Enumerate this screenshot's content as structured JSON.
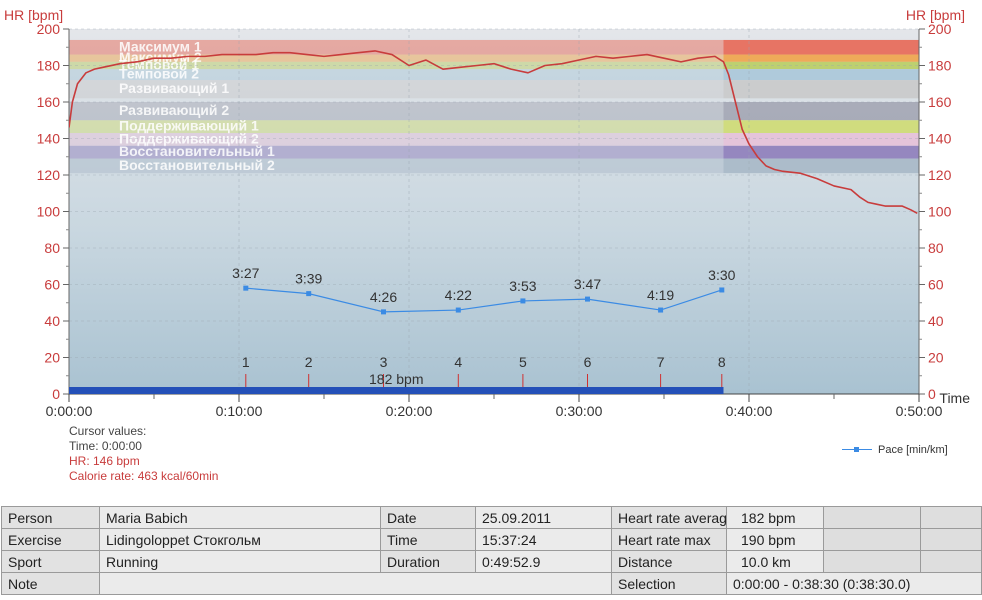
{
  "chart_data": {
    "type": "line",
    "ylabel_left": "HR [bpm]",
    "ylabel_right": "HR [bpm]",
    "xlabel": "Time",
    "ylim": [
      0,
      200
    ],
    "y_ticks": [
      0,
      20,
      40,
      60,
      80,
      100,
      120,
      140,
      160,
      180,
      200
    ],
    "xlim_min": [
      0,
      50
    ],
    "x_ticks": [
      "0:00:00",
      "0:10:00",
      "0:20:00",
      "0:30:00",
      "0:40:00",
      "0:50:00"
    ],
    "zones": [
      {
        "name": "Максимум 1",
        "low": 186,
        "high": 194,
        "color": "#e8604c"
      },
      {
        "name": "Максимум 2",
        "low": 182,
        "high": 186,
        "color": "#f0a040"
      },
      {
        "name": "Темповой 1",
        "low": 178,
        "high": 182,
        "color": "#b7cc5a"
      },
      {
        "name": "Темповой 2",
        "low": 172,
        "high": 178,
        "color": "#a7c6d8"
      },
      {
        "name": "Развивающий 1",
        "low": 162,
        "high": 172,
        "color": "#c8c8c8"
      },
      {
        "name": "Развивающий 2",
        "low": 150,
        "high": 160,
        "color": "#a0a2b0"
      },
      {
        "name": "Поддерживающий 1",
        "low": 143,
        "high": 150,
        "color": "#cfdc6c"
      },
      {
        "name": "Поддерживающий 2",
        "low": 136,
        "high": 143,
        "color": "#e7bfd8"
      },
      {
        "name": "Восстановительный 1",
        "low": 129,
        "high": 136,
        "color": "#8a78b8"
      },
      {
        "name": "Восстановительный 2",
        "low": 121,
        "high": 129,
        "color": "#a6b6c6"
      }
    ],
    "series": [
      {
        "name": "HR",
        "color": "#c83c3c",
        "x_min": [
          0,
          0.2,
          0.5,
          1,
          1.5,
          2,
          3,
          4,
          5,
          6,
          7,
          8,
          9,
          10,
          11,
          12,
          13,
          14,
          15,
          16,
          17,
          18,
          19,
          20,
          21,
          22,
          23,
          24,
          25,
          26,
          27,
          28,
          29,
          30,
          31,
          32,
          33,
          34,
          35,
          36,
          37,
          38,
          38.5,
          38.8,
          39.2,
          39.6,
          40,
          40.5,
          41,
          41.5,
          42,
          43,
          44,
          45,
          46,
          46.5,
          47,
          47.5,
          48,
          49,
          49.5,
          49.9
        ],
        "y": [
          146,
          160,
          170,
          176,
          178,
          179,
          181,
          182,
          184,
          184,
          185,
          185,
          186,
          186,
          186,
          187,
          187,
          186,
          185,
          186,
          187,
          188,
          186,
          180,
          183,
          178,
          179,
          180,
          181,
          178,
          176,
          180,
          181,
          183,
          185,
          184,
          185,
          186,
          184,
          182,
          184,
          185,
          182,
          175,
          160,
          145,
          137,
          130,
          125,
          123,
          122,
          121,
          118,
          114,
          112,
          108,
          105,
          104,
          103,
          103,
          101,
          99
        ]
      },
      {
        "name": "Pace [min/km]",
        "color": "#3b8be4",
        "x_min": [
          10.4,
          14.1,
          18.5,
          22.9,
          26.7,
          30.5,
          34.8,
          38.4
        ],
        "y": [
          58,
          55,
          45,
          46,
          51,
          52,
          46,
          57
        ],
        "labels": [
          "3:27",
          "3:39",
          "4:26",
          "4:22",
          "3:53",
          "3:47",
          "4:19",
          "3:30"
        ]
      }
    ],
    "laps": {
      "x_min": [
        10.4,
        14.1,
        18.5,
        22.9,
        26.7,
        30.5,
        34.8,
        38.4
      ],
      "labels": [
        "1",
        "2",
        "3",
        "4",
        "5",
        "6",
        "7",
        "8"
      ]
    },
    "selection_bar": {
      "start_min": 0,
      "end_min": 38.5,
      "label": "182 bpm",
      "color": "#2450b8"
    },
    "grid": true
  },
  "cursor": {
    "title": "Cursor values:",
    "time": "Time: 0:00:00",
    "hr": "HR: 146 bpm",
    "calorie": "Calorie rate: 463 kcal/60min"
  },
  "legend": {
    "label": "Pace [min/km]",
    "color": "#3b8be4"
  },
  "info_table": {
    "row1": {
      "l1": "Person",
      "v1": "Maria Babich",
      "l2": "Date",
      "v2": "25.09.2011",
      "l3": "Heart rate averag",
      "v3": "182 bpm"
    },
    "row2": {
      "l1": "Exercise",
      "v1": "Lidingoloppet Стокгольм",
      "l2": "Time",
      "v2": "15:37:24",
      "l3": "Heart rate max",
      "v3": "190 bpm"
    },
    "row3": {
      "l1": "Sport",
      "v1": "Running",
      "l2": "Duration",
      "v2": "0:49:52.9",
      "l3": "Distance",
      "v3": "10.0 km"
    },
    "row4": {
      "l1": "Note",
      "v1": "",
      "l3": "Selection",
      "v3": "0:00:00 - 0:38:30 (0:38:30.0)"
    }
  }
}
